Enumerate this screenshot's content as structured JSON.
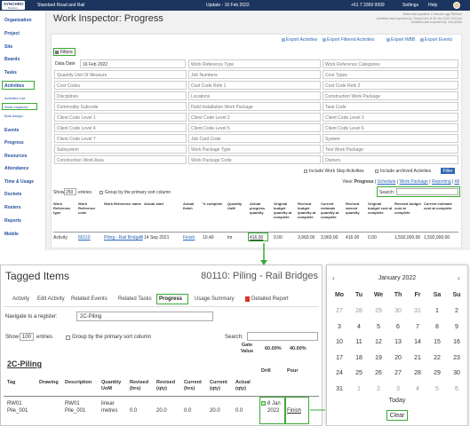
{
  "header": {
    "logo": "SYNCHRO",
    "logo_sub": "Perform",
    "project": "Standard Road and Rail",
    "update": "Update - 16 Feb 2022",
    "phone": "+61 7 3369 9939",
    "settings": "Settings",
    "help": "Help"
  },
  "sidebar": {
    "items": [
      {
        "label": "Organization"
      },
      {
        "label": "Project"
      },
      {
        "label": "Site"
      },
      {
        "label": "Boards"
      },
      {
        "label": "Tasks"
      },
      {
        "label": "Activities",
        "children": [
          "Activities List",
          "Work Inspector",
          "Bulk Assign"
        ]
      },
      {
        "label": "Events"
      },
      {
        "label": "Progress"
      },
      {
        "label": "Resources"
      },
      {
        "label": "Attendance"
      },
      {
        "label": "Time & Usage"
      },
      {
        "label": "Dockets"
      },
      {
        "label": "Rosters"
      },
      {
        "label": "Reports"
      },
      {
        "label": "Mobile"
      }
    ]
  },
  "main": {
    "title": "Work Inspector: Progress",
    "notes": [
      "Rates last updated: 2 minutes ago Refresh",
      "Activities last imported by: Guest One at 28 Jan 2022 3:54 pm",
      "Activities last exported by: Not at this"
    ],
    "exports": [
      "Export Activities",
      "Export Filtered Activities",
      "Export WBB",
      "Export Events"
    ],
    "filters_button": "Filters",
    "filters": {
      "data_date": {
        "label": "Data Date",
        "value": "16 Feb 2022"
      },
      "fields": [
        "Work Reference Type",
        "Work Reference Categories",
        "Quantity Unit Of Measure",
        "Job Numbers",
        "Cost Types",
        "Cost Codes",
        "Cost Code Refs 1",
        "Cost Code Refs 2",
        "Disciplines",
        "Locations",
        "Construction Work Package",
        "Commodity Subcode",
        "Field Installation Work Package",
        "Task Code",
        "Client Code Level 1",
        "Client Code Level 2",
        "Client Code Level 3",
        "Client Code Level 4",
        "Client Code Level 5",
        "Client Code Level 6",
        "Client Code Level 7",
        "Job Card Code",
        "System",
        "Subsystem",
        "Work Package Type",
        "Test Work Package",
        "Construction Work Area",
        "Work Package Code",
        "Owners"
      ]
    },
    "options": [
      "Include Work Step Activities",
      "Include archived Activities"
    ],
    "filter_button": "Filter",
    "view": {
      "label": "View:",
      "links": [
        "Progress",
        "Schedule",
        "Work Package",
        "Reporting",
        "All"
      ]
    },
    "show": {
      "show": "Show",
      "entries_value": "250",
      "entries": "entries",
      "group": "Group by the primary sort column",
      "search": "Search:"
    },
    "table": {
      "columns": [
        "Work Reference type",
        "Work Reference code",
        "Work Reference name",
        "Actual start",
        "Actual finish",
        "% complete",
        "Quantity UoM",
        "Actual progress quantity",
        "Original budget quantity at complete",
        "Revised budget quantity at complete",
        "Current estimate quantity at complete",
        "Revised earned quantity",
        "Original budget cost at complete",
        "Revised budget cost at complete",
        "Current estimate cost at complete"
      ],
      "rows": [
        [
          "Activity",
          "80110",
          "Piling - Rail Bridges",
          "14 Sep 2021",
          "Finish",
          "10.40",
          "lm",
          "416.00",
          "0.00",
          "3,960.00",
          "3,960.00",
          "416.00",
          "0.00",
          "1,592,000.00",
          "1,592,000.00"
        ]
      ]
    }
  },
  "tagged": {
    "title": "Tagged Items",
    "subtitle": "80110: Piling - Rail Bridges",
    "tabs": [
      "Activity",
      "Edit Activity",
      "Related Events",
      "Related Tasks",
      "Progress",
      "Usage Summary",
      "Detailed Report"
    ],
    "navigate_label": "Navigate to a register:",
    "register": "2C-Piling",
    "show": "Show",
    "entries_value": "100",
    "entries": "entries",
    "group": "Group by the primary sort column",
    "search": "Search:",
    "gate_label": "Gate Value",
    "gates": [
      "60.00%",
      "40.00%"
    ],
    "register_heading": "2C-Piling",
    "columns": [
      "Tag",
      "Drawing",
      "Description",
      "Quantity UoM",
      "Revised (hrs)",
      "Revised (qty)",
      "Current (hrs)",
      "Current (qty)",
      "Actual (qty)",
      "Drill",
      "Pour"
    ],
    "rows": [
      [
        "RW01 Pile_001",
        null,
        "RW01 Pile_001",
        "linear metres",
        "0.0",
        "20.0",
        "0.0",
        "20.0",
        "0.0",
        "8 Jan 2022",
        "Finish"
      ]
    ]
  },
  "calendar": {
    "month": "January 2022",
    "weekdays": [
      "Mo",
      "Tu",
      "We",
      "Th",
      "Fr",
      "Sa",
      "Su"
    ],
    "weeks": [
      [
        27,
        28,
        29,
        30,
        31,
        1,
        2
      ],
      [
        3,
        4,
        5,
        6,
        7,
        8,
        9
      ],
      [
        10,
        11,
        12,
        13,
        14,
        15,
        16
      ],
      [
        17,
        18,
        19,
        20,
        21,
        22,
        23
      ],
      [
        24,
        25,
        26,
        27,
        28,
        29,
        30
      ],
      [
        31,
        1,
        2,
        3,
        4,
        5,
        6
      ]
    ],
    "today": "Today",
    "clear": "Clear"
  }
}
